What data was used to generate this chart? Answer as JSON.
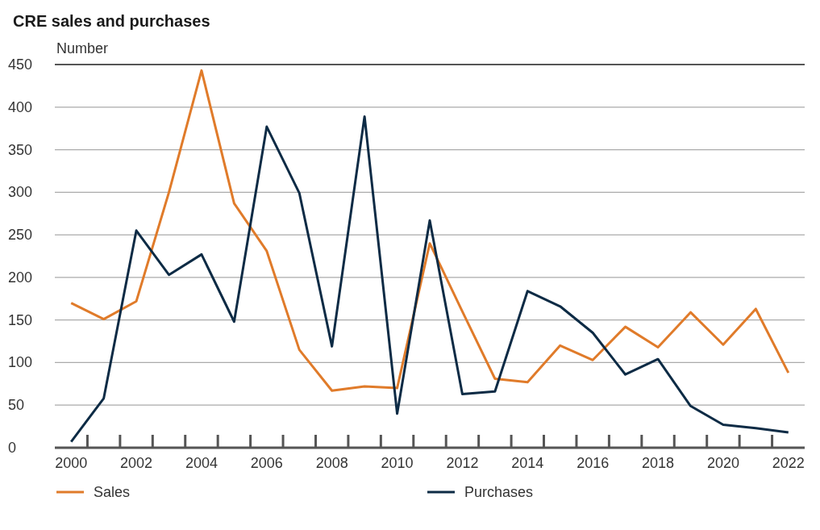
{
  "chart_data": {
    "type": "line",
    "title": "CRE sales and purchases",
    "ylabel": "Number",
    "categories": [
      "2000",
      null,
      "2002",
      null,
      "2004",
      null,
      "2006",
      null,
      "2008",
      null,
      "2010",
      null,
      "2012",
      null,
      "2014",
      null,
      "2016",
      null,
      "2018",
      null,
      "2020",
      null,
      "2022"
    ],
    "series": [
      {
        "name": "Sales",
        "color": "#e07b2a",
        "values": [
          170,
          151,
          172,
          300,
          443,
          287,
          231,
          115,
          67,
          72,
          70,
          240,
          160,
          81,
          77,
          120,
          103,
          142,
          118,
          159,
          121,
          163,
          88
        ]
      },
      {
        "name": "Purchases",
        "color": "#0d2b45",
        "values": [
          7,
          58,
          255,
          203,
          227,
          148,
          377,
          299,
          119,
          389,
          40,
          267,
          63,
          66,
          184,
          166,
          135,
          86,
          104,
          49,
          27,
          23,
          18
        ]
      }
    ],
    "ylim": [
      0,
      450
    ],
    "yticks": [
      0,
      50,
      100,
      150,
      200,
      250,
      300,
      350,
      400,
      450
    ],
    "grid": "y",
    "legend": "bottom",
    "line_style": "solid",
    "marker": "none"
  }
}
